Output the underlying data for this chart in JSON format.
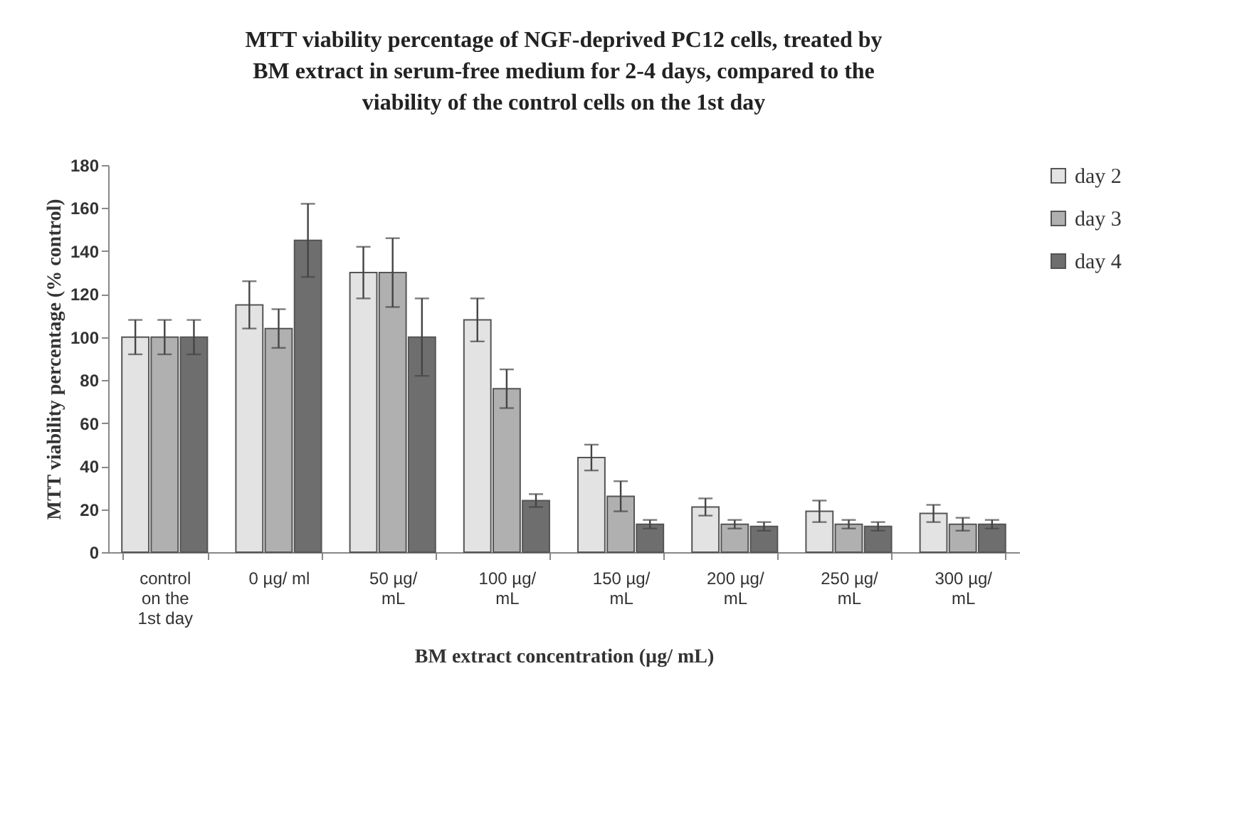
{
  "chart_data": {
    "type": "bar",
    "title": "MTT viability percentage of NGF-deprived PC12 cells, treated by\nBM extract in serum-free medium for 2-4 days, compared to the\nviability of the control cells on the 1st day",
    "xlabel": "BM extract concentration (µg/ mL)",
    "ylabel": "MTT viability percentage (% control)",
    "categories": [
      "control\non the\n1st day",
      "0 µg/ ml",
      "50 µg/\nmL",
      "100 µg/\nmL",
      "150 µg/\nmL",
      "200 µg/\nmL",
      "250 µg/\nmL",
      "300 µg/\nmL"
    ],
    "series": [
      {
        "name": "day 2",
        "color": "#e3e3e3",
        "values": [
          100,
          115,
          130,
          108,
          44,
          21,
          19,
          18
        ],
        "errors": [
          8,
          11,
          12,
          10,
          6,
          4,
          5,
          4
        ]
      },
      {
        "name": "day 3",
        "color": "#b0b0b0",
        "values": [
          100,
          104,
          130,
          76,
          26,
          13,
          13,
          13
        ],
        "errors": [
          8,
          9,
          16,
          9,
          7,
          2,
          2,
          3
        ]
      },
      {
        "name": "day 4",
        "color": "#6e6e6e",
        "values": [
          100,
          145,
          100,
          24,
          13,
          12,
          12,
          13
        ],
        "errors": [
          8,
          17,
          18,
          3,
          2,
          2,
          2,
          2
        ]
      }
    ],
    "ylim": [
      0,
      180
    ],
    "yticks": [
      0,
      20,
      40,
      60,
      80,
      100,
      120,
      140,
      160,
      180
    ],
    "grid": false,
    "legend": "right"
  }
}
